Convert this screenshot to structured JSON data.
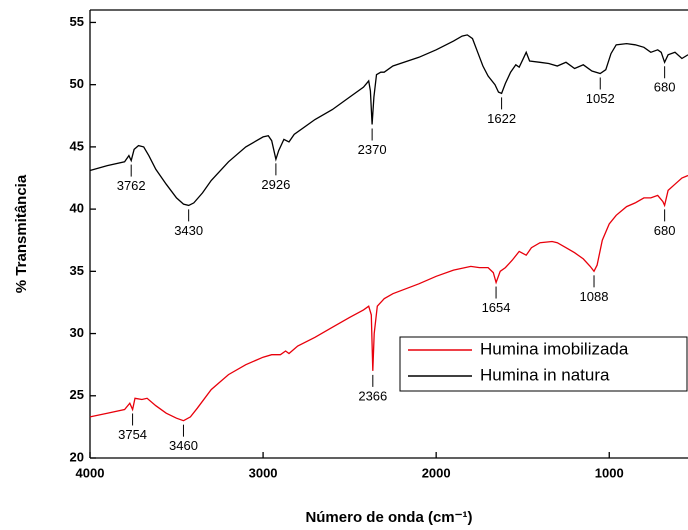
{
  "chart_data": {
    "type": "line",
    "xlabel": "Número de onda (cm⁻¹)",
    "ylabel": "% Transmitância",
    "xlim": [
      4000,
      545
    ],
    "ylim": [
      20,
      56
    ],
    "xticks": [
      4000,
      3000,
      2000,
      1000
    ],
    "yticks": [
      20,
      25,
      30,
      35,
      40,
      45,
      50,
      55
    ],
    "legend": "lower-right",
    "series": [
      {
        "name": "Humina imobilizada",
        "color": "#e8000b",
        "x": [
          4000,
          3900,
          3800,
          3770,
          3754,
          3740,
          3700,
          3670,
          3620,
          3560,
          3500,
          3460,
          3420,
          3380,
          3300,
          3200,
          3100,
          3000,
          2950,
          2900,
          2870,
          2850,
          2800,
          2700,
          2600,
          2500,
          2420,
          2390,
          2375,
          2366,
          2358,
          2340,
          2300,
          2250,
          2100,
          2000,
          1900,
          1800,
          1750,
          1700,
          1670,
          1654,
          1630,
          1600,
          1560,
          1520,
          1480,
          1450,
          1400,
          1330,
          1300,
          1250,
          1200,
          1150,
          1110,
          1088,
          1070,
          1040,
          1000,
          960,
          900,
          850,
          800,
          760,
          720,
          690,
          680,
          660,
          620,
          580,
          545
        ],
        "values": [
          23.3,
          23.6,
          23.9,
          24.4,
          23.9,
          24.8,
          24.7,
          24.8,
          24.2,
          23.6,
          23.2,
          23.0,
          23.3,
          24.0,
          25.5,
          26.7,
          27.5,
          28.1,
          28.3,
          28.3,
          28.6,
          28.4,
          29.0,
          29.7,
          30.5,
          31.3,
          31.9,
          32.2,
          31.5,
          27.0,
          30.0,
          32.2,
          32.8,
          33.2,
          34.0,
          34.6,
          35.1,
          35.4,
          35.3,
          35.3,
          34.9,
          34.1,
          35.0,
          35.3,
          35.9,
          36.6,
          36.3,
          36.9,
          37.3,
          37.4,
          37.3,
          36.9,
          36.5,
          36.0,
          35.4,
          35.0,
          35.5,
          37.5,
          38.8,
          39.5,
          40.2,
          40.5,
          40.9,
          40.9,
          41.1,
          40.6,
          40.3,
          41.5,
          42.0,
          42.5,
          42.7
        ],
        "peaks": [
          3754,
          3460,
          2366,
          1654,
          1088,
          680
        ]
      },
      {
        "name": "Humina in natura",
        "color": "#000000",
        "x": [
          4000,
          3900,
          3800,
          3775,
          3762,
          3745,
          3720,
          3690,
          3660,
          3620,
          3560,
          3500,
          3460,
          3430,
          3400,
          3350,
          3300,
          3200,
          3100,
          3000,
          2970,
          2950,
          2926,
          2910,
          2880,
          2850,
          2820,
          2700,
          2600,
          2500,
          2420,
          2390,
          2380,
          2370,
          2360,
          2345,
          2320,
          2300,
          2250,
          2100,
          2000,
          1900,
          1850,
          1820,
          1790,
          1760,
          1730,
          1700,
          1660,
          1640,
          1622,
          1600,
          1570,
          1540,
          1520,
          1500,
          1480,
          1460,
          1400,
          1350,
          1300,
          1250,
          1200,
          1150,
          1100,
          1052,
          1020,
          990,
          960,
          900,
          850,
          800,
          760,
          720,
          700,
          680,
          660,
          620,
          580,
          545
        ],
        "values": [
          43.1,
          43.5,
          43.8,
          44.3,
          43.9,
          44.8,
          45.1,
          45.0,
          44.3,
          43.2,
          42.0,
          40.9,
          40.4,
          40.3,
          40.5,
          41.3,
          42.3,
          43.8,
          45.0,
          45.8,
          45.9,
          45.5,
          44.0,
          44.7,
          45.6,
          45.4,
          46.0,
          47.2,
          48.0,
          49.0,
          49.8,
          50.3,
          49.5,
          46.8,
          49.0,
          50.8,
          51.0,
          51.0,
          51.5,
          52.2,
          52.8,
          53.5,
          53.9,
          54.0,
          53.7,
          52.6,
          51.5,
          50.7,
          50.0,
          49.4,
          49.3,
          50.1,
          51.0,
          51.6,
          51.4,
          52.0,
          52.6,
          51.9,
          51.8,
          51.7,
          51.5,
          51.8,
          51.3,
          51.6,
          51.1,
          50.9,
          51.2,
          52.5,
          53.2,
          53.3,
          53.2,
          53.0,
          52.6,
          52.8,
          52.6,
          51.8,
          52.4,
          52.6,
          52.1,
          52.4
        ],
        "peaks": [
          3762,
          3430,
          2926,
          2370,
          1622,
          1052,
          680
        ]
      }
    ]
  }
}
